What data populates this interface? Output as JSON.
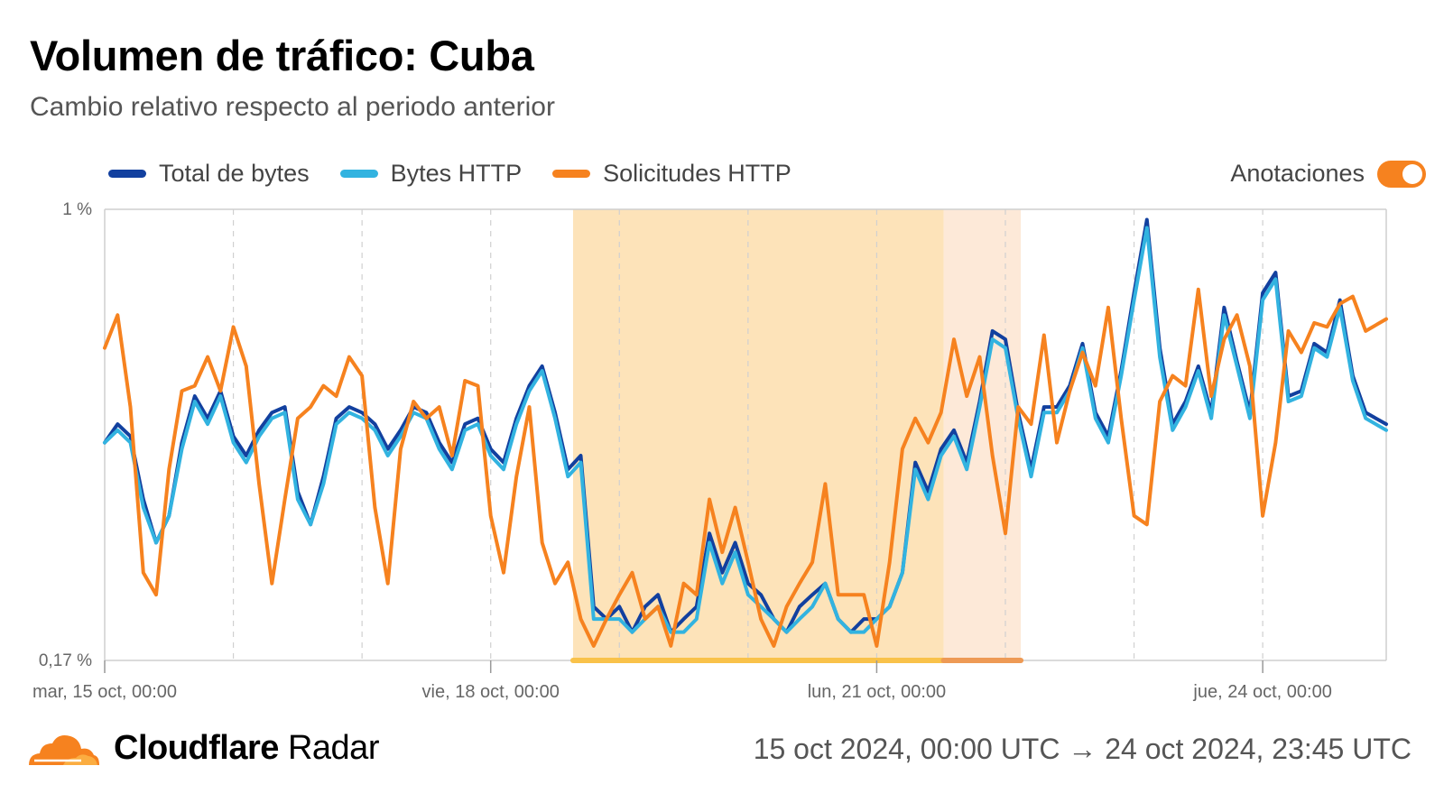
{
  "header": {
    "title": "Volumen de tráfico: Cuba",
    "subtitle": "Cambio relativo respecto al periodo anterior"
  },
  "annotations_toggle": {
    "label": "Anotaciones",
    "on": true,
    "color": "#f6821f"
  },
  "footer": {
    "brand_bold": "Cloudflare",
    "brand_regular": "Radar",
    "date_range": "15 oct 2024, 00:00 UTC → 24 oct 2024, 23:45 UTC"
  },
  "chart_data": {
    "type": "line",
    "title": "Volumen de tráfico: Cuba",
    "subtitle": "Cambio relativo respecto al periodo anterior",
    "yscale": "log",
    "ylim": [
      "0,17 %",
      "1 %"
    ],
    "ylim_numeric": [
      0.17,
      1.0
    ],
    "y_ticks": [
      "1 %",
      "0,17 %"
    ],
    "x_ticks": [
      "mar, 15 oct, 00:00",
      "vie, 18 oct, 00:00",
      "lun, 21 oct, 00:00",
      "jue, 24 oct, 00:00"
    ],
    "x_tick_days": [
      0,
      3,
      6,
      9
    ],
    "xlim_days": [
      0,
      9.96
    ],
    "grid": "vertical dashed, every 24h",
    "legend_position": "top-left",
    "annotations": [
      {
        "start_day": 3.64,
        "end_day": 6.52,
        "color": "#fde3b9",
        "bar_color": "#f9c24a"
      },
      {
        "start_day": 6.52,
        "end_day": 7.12,
        "color": "#fde9d8",
        "bar_color": "#ee9a55"
      }
    ],
    "series": [
      {
        "name": "Total de bytes",
        "color": "#12409f",
        "x": [
          0,
          0.1,
          0.2,
          0.3,
          0.4,
          0.5,
          0.6,
          0.7,
          0.8,
          0.9,
          1,
          1.1,
          1.2,
          1.3,
          1.4,
          1.5,
          1.6,
          1.7,
          1.8,
          1.9,
          2,
          2.1,
          2.2,
          2.3,
          2.4,
          2.5,
          2.6,
          2.7,
          2.8,
          2.9,
          3,
          3.1,
          3.2,
          3.3,
          3.4,
          3.5,
          3.6,
          3.7,
          3.8,
          3.9,
          4,
          4.1,
          4.2,
          4.3,
          4.4,
          4.5,
          4.6,
          4.7,
          4.8,
          4.9,
          5,
          5.1,
          5.2,
          5.3,
          5.4,
          5.5,
          5.6,
          5.7,
          5.8,
          5.9,
          6,
          6.1,
          6.2,
          6.3,
          6.4,
          6.5,
          6.6,
          6.7,
          6.8,
          6.9,
          7,
          7.1,
          7.2,
          7.3,
          7.4,
          7.5,
          7.6,
          7.7,
          7.8,
          7.9,
          8,
          8.1,
          8.2,
          8.3,
          8.4,
          8.5,
          8.6,
          8.7,
          8.8,
          8.9,
          9,
          9.1,
          9.2,
          9.3,
          9.4,
          9.5,
          9.6,
          9.7,
          9.8,
          9.96
        ],
        "values": [
          0.4,
          0.43,
          0.41,
          0.32,
          0.27,
          0.3,
          0.4,
          0.48,
          0.44,
          0.49,
          0.41,
          0.38,
          0.42,
          0.45,
          0.46,
          0.33,
          0.29,
          0.35,
          0.44,
          0.46,
          0.45,
          0.43,
          0.39,
          0.42,
          0.46,
          0.45,
          0.4,
          0.37,
          0.43,
          0.44,
          0.39,
          0.37,
          0.44,
          0.5,
          0.54,
          0.45,
          0.36,
          0.38,
          0.21,
          0.2,
          0.21,
          0.19,
          0.21,
          0.22,
          0.19,
          0.2,
          0.21,
          0.28,
          0.24,
          0.27,
          0.23,
          0.22,
          0.2,
          0.19,
          0.21,
          0.22,
          0.23,
          0.2,
          0.19,
          0.2,
          0.2,
          0.21,
          0.24,
          0.37,
          0.33,
          0.39,
          0.42,
          0.37,
          0.47,
          0.62,
          0.6,
          0.45,
          0.36,
          0.46,
          0.46,
          0.5,
          0.59,
          0.45,
          0.41,
          0.53,
          0.72,
          0.96,
          0.58,
          0.43,
          0.47,
          0.54,
          0.45,
          0.68,
          0.55,
          0.45,
          0.72,
          0.78,
          0.48,
          0.49,
          0.59,
          0.57,
          0.7,
          0.52,
          0.45,
          0.43
        ]
      },
      {
        "name": "Bytes HTTP",
        "color": "#32b3e0",
        "x": [
          0,
          0.1,
          0.2,
          0.3,
          0.4,
          0.5,
          0.6,
          0.7,
          0.8,
          0.9,
          1,
          1.1,
          1.2,
          1.3,
          1.4,
          1.5,
          1.6,
          1.7,
          1.8,
          1.9,
          2,
          2.1,
          2.2,
          2.3,
          2.4,
          2.5,
          2.6,
          2.7,
          2.8,
          2.9,
          3,
          3.1,
          3.2,
          3.3,
          3.4,
          3.5,
          3.6,
          3.7,
          3.8,
          3.9,
          4,
          4.1,
          4.2,
          4.3,
          4.4,
          4.5,
          4.6,
          4.7,
          4.8,
          4.9,
          5,
          5.1,
          5.2,
          5.3,
          5.4,
          5.5,
          5.6,
          5.7,
          5.8,
          5.9,
          6,
          6.1,
          6.2,
          6.3,
          6.4,
          6.5,
          6.6,
          6.7,
          6.8,
          6.9,
          7,
          7.1,
          7.2,
          7.3,
          7.4,
          7.5,
          7.6,
          7.7,
          7.8,
          7.9,
          8,
          8.1,
          8.2,
          8.3,
          8.4,
          8.5,
          8.6,
          8.7,
          8.8,
          8.9,
          9,
          9.1,
          9.2,
          9.3,
          9.4,
          9.5,
          9.6,
          9.7,
          9.8,
          9.96
        ],
        "values": [
          0.4,
          0.42,
          0.4,
          0.31,
          0.27,
          0.3,
          0.39,
          0.47,
          0.43,
          0.48,
          0.4,
          0.37,
          0.41,
          0.44,
          0.45,
          0.32,
          0.29,
          0.34,
          0.43,
          0.45,
          0.44,
          0.42,
          0.38,
          0.41,
          0.45,
          0.44,
          0.39,
          0.36,
          0.42,
          0.43,
          0.38,
          0.36,
          0.43,
          0.49,
          0.53,
          0.44,
          0.35,
          0.37,
          0.2,
          0.2,
          0.2,
          0.19,
          0.2,
          0.21,
          0.19,
          0.19,
          0.2,
          0.27,
          0.23,
          0.26,
          0.22,
          0.21,
          0.2,
          0.19,
          0.2,
          0.21,
          0.23,
          0.2,
          0.19,
          0.19,
          0.2,
          0.21,
          0.24,
          0.36,
          0.32,
          0.38,
          0.41,
          0.36,
          0.46,
          0.6,
          0.58,
          0.44,
          0.35,
          0.45,
          0.45,
          0.49,
          0.58,
          0.44,
          0.4,
          0.52,
          0.7,
          0.93,
          0.56,
          0.42,
          0.46,
          0.53,
          0.44,
          0.66,
          0.54,
          0.44,
          0.7,
          0.76,
          0.47,
          0.48,
          0.58,
          0.56,
          0.68,
          0.51,
          0.44,
          0.42
        ]
      },
      {
        "name": "Solicitudes HTTP",
        "color": "#f6821f",
        "x": [
          0,
          0.1,
          0.2,
          0.3,
          0.4,
          0.5,
          0.6,
          0.7,
          0.8,
          0.9,
          1,
          1.1,
          1.2,
          1.3,
          1.4,
          1.5,
          1.6,
          1.7,
          1.8,
          1.9,
          2,
          2.1,
          2.2,
          2.3,
          2.4,
          2.5,
          2.6,
          2.7,
          2.8,
          2.9,
          3,
          3.1,
          3.2,
          3.3,
          3.4,
          3.5,
          3.6,
          3.7,
          3.8,
          3.9,
          4,
          4.1,
          4.2,
          4.3,
          4.4,
          4.5,
          4.6,
          4.7,
          4.8,
          4.9,
          5,
          5.1,
          5.2,
          5.3,
          5.4,
          5.5,
          5.6,
          5.7,
          5.8,
          5.9,
          6,
          6.1,
          6.2,
          6.3,
          6.4,
          6.5,
          6.6,
          6.7,
          6.8,
          6.9,
          7,
          7.1,
          7.2,
          7.3,
          7.4,
          7.5,
          7.6,
          7.7,
          7.8,
          7.9,
          8,
          8.1,
          8.2,
          8.3,
          8.4,
          8.5,
          8.6,
          8.7,
          8.8,
          8.9,
          9,
          9.1,
          9.2,
          9.3,
          9.4,
          9.5,
          9.6,
          9.7,
          9.8,
          9.96
        ],
        "values": [
          0.58,
          0.66,
          0.46,
          0.24,
          0.22,
          0.36,
          0.49,
          0.5,
          0.56,
          0.49,
          0.63,
          0.54,
          0.34,
          0.23,
          0.32,
          0.44,
          0.46,
          0.5,
          0.48,
          0.56,
          0.52,
          0.31,
          0.23,
          0.39,
          0.47,
          0.44,
          0.46,
          0.38,
          0.51,
          0.5,
          0.3,
          0.24,
          0.35,
          0.46,
          0.27,
          0.23,
          0.25,
          0.2,
          0.18,
          0.2,
          0.22,
          0.24,
          0.2,
          0.21,
          0.18,
          0.23,
          0.22,
          0.32,
          0.26,
          0.31,
          0.25,
          0.2,
          0.18,
          0.21,
          0.23,
          0.25,
          0.34,
          0.22,
          0.22,
          0.22,
          0.18,
          0.25,
          0.39,
          0.44,
          0.4,
          0.45,
          0.6,
          0.48,
          0.56,
          0.38,
          0.28,
          0.46,
          0.43,
          0.61,
          0.4,
          0.49,
          0.57,
          0.5,
          0.68,
          0.44,
          0.3,
          0.29,
          0.47,
          0.52,
          0.5,
          0.73,
          0.48,
          0.6,
          0.66,
          0.54,
          0.3,
          0.4,
          0.62,
          0.57,
          0.64,
          0.63,
          0.69,
          0.71,
          0.62,
          0.65
        ]
      }
    ]
  }
}
